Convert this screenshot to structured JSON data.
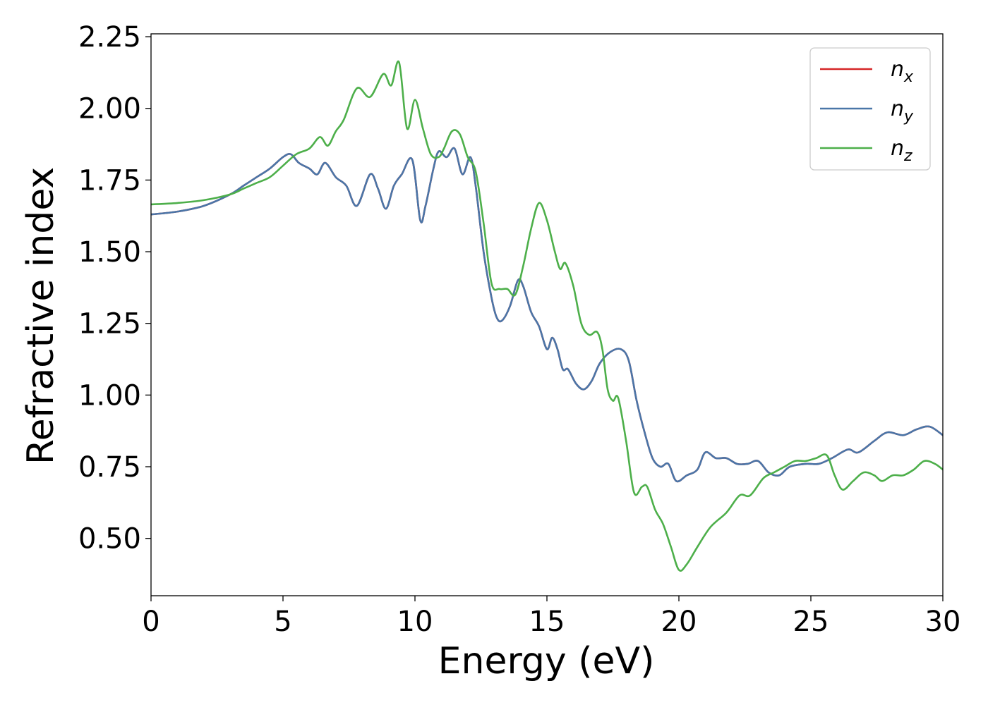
{
  "chart_data": {
    "type": "line",
    "title": "",
    "xlabel": "Energy (eV)",
    "ylabel": "Refractive index",
    "xlim": [
      0,
      30
    ],
    "ylim": [
      0.3,
      2.26
    ],
    "xticks": [
      0,
      5,
      10,
      15,
      20,
      25,
      30
    ],
    "xtick_labels": [
      "0",
      "5",
      "10",
      "15",
      "20",
      "25",
      "30"
    ],
    "yticks": [
      0.5,
      0.75,
      1.0,
      1.25,
      1.5,
      1.75,
      2.0,
      2.25
    ],
    "ytick_labels": [
      "0.50",
      "0.75",
      "1.00",
      "1.25",
      "1.50",
      "1.75",
      "2.00",
      "2.25"
    ],
    "grid": false,
    "legend_position": "top-right",
    "series": [
      {
        "name": "n",
        "subscript": "x",
        "color": "#d62728",
        "x": [
          0,
          1,
          2,
          3,
          3.5,
          4,
          4.5,
          5,
          5.3,
          5.6,
          6,
          6.3,
          6.6,
          7,
          7.4,
          7.8,
          8.3,
          8.6,
          8.9,
          9.2,
          9.5,
          9.9,
          10.2,
          10.4,
          10.7,
          10.9,
          11.2,
          11.5,
          11.8,
          12.1,
          12.3,
          12.6,
          12.9,
          13.1,
          13.3,
          13.6,
          13.9,
          14.1,
          14.4,
          14.7,
          15.0,
          15.2,
          15.4,
          15.6,
          15.8,
          16.1,
          16.4,
          16.7,
          17.0,
          17.4,
          17.8,
          18.1,
          18.4,
          18.7,
          19.0,
          19.3,
          19.6,
          19.9,
          20.3,
          20.7,
          21.0,
          21.4,
          21.8,
          22.2,
          22.6,
          23.0,
          23.4,
          23.8,
          24.2,
          24.8,
          25.3,
          25.8,
          26.4,
          26.8,
          27.4,
          27.9,
          28.5,
          29.0,
          29.5,
          30.0
        ],
        "y": [
          1.63,
          1.64,
          1.66,
          1.7,
          1.73,
          1.76,
          1.79,
          1.83,
          1.84,
          1.81,
          1.79,
          1.77,
          1.81,
          1.76,
          1.73,
          1.66,
          1.77,
          1.72,
          1.65,
          1.73,
          1.77,
          1.82,
          1.61,
          1.66,
          1.79,
          1.85,
          1.83,
          1.86,
          1.77,
          1.83,
          1.73,
          1.5,
          1.34,
          1.27,
          1.26,
          1.31,
          1.4,
          1.38,
          1.29,
          1.24,
          1.16,
          1.2,
          1.16,
          1.09,
          1.09,
          1.04,
          1.02,
          1.05,
          1.11,
          1.15,
          1.16,
          1.12,
          0.98,
          0.87,
          0.78,
          0.75,
          0.76,
          0.7,
          0.72,
          0.74,
          0.8,
          0.78,
          0.78,
          0.76,
          0.76,
          0.77,
          0.73,
          0.72,
          0.75,
          0.76,
          0.76,
          0.78,
          0.81,
          0.8,
          0.84,
          0.87,
          0.86,
          0.88,
          0.89,
          0.86
        ]
      },
      {
        "name": "n",
        "subscript": "y",
        "color": "#4a76a8",
        "x": [
          0,
          1,
          2,
          3,
          3.5,
          4,
          4.5,
          5,
          5.3,
          5.6,
          6,
          6.3,
          6.6,
          7,
          7.4,
          7.8,
          8.3,
          8.6,
          8.9,
          9.2,
          9.5,
          9.9,
          10.2,
          10.4,
          10.7,
          10.9,
          11.2,
          11.5,
          11.8,
          12.1,
          12.3,
          12.6,
          12.9,
          13.1,
          13.3,
          13.6,
          13.9,
          14.1,
          14.4,
          14.7,
          15.0,
          15.2,
          15.4,
          15.6,
          15.8,
          16.1,
          16.4,
          16.7,
          17.0,
          17.4,
          17.8,
          18.1,
          18.4,
          18.7,
          19.0,
          19.3,
          19.6,
          19.9,
          20.3,
          20.7,
          21.0,
          21.4,
          21.8,
          22.2,
          22.6,
          23.0,
          23.4,
          23.8,
          24.2,
          24.8,
          25.3,
          25.8,
          26.4,
          26.8,
          27.4,
          27.9,
          28.5,
          29.0,
          29.5,
          30.0
        ],
        "y": [
          1.63,
          1.64,
          1.66,
          1.7,
          1.73,
          1.76,
          1.79,
          1.83,
          1.84,
          1.81,
          1.79,
          1.77,
          1.81,
          1.76,
          1.73,
          1.66,
          1.77,
          1.72,
          1.65,
          1.73,
          1.77,
          1.82,
          1.61,
          1.66,
          1.79,
          1.85,
          1.83,
          1.86,
          1.77,
          1.83,
          1.73,
          1.5,
          1.34,
          1.27,
          1.26,
          1.31,
          1.4,
          1.38,
          1.29,
          1.24,
          1.16,
          1.2,
          1.16,
          1.09,
          1.09,
          1.04,
          1.02,
          1.05,
          1.11,
          1.15,
          1.16,
          1.12,
          0.98,
          0.87,
          0.78,
          0.75,
          0.76,
          0.7,
          0.72,
          0.74,
          0.8,
          0.78,
          0.78,
          0.76,
          0.76,
          0.77,
          0.73,
          0.72,
          0.75,
          0.76,
          0.76,
          0.78,
          0.81,
          0.8,
          0.84,
          0.87,
          0.86,
          0.88,
          0.89,
          0.86
        ]
      },
      {
        "name": "n",
        "subscript": "z",
        "color": "#4daf4a",
        "x": [
          0,
          1,
          2,
          3,
          3.5,
          4,
          4.5,
          5,
          5.5,
          6,
          6.4,
          6.7,
          7.0,
          7.3,
          7.8,
          8.3,
          8.8,
          9.1,
          9.4,
          9.7,
          10.0,
          10.3,
          10.6,
          10.9,
          11.1,
          11.4,
          11.7,
          12.0,
          12.3,
          12.6,
          12.9,
          13.2,
          13.5,
          13.8,
          14.1,
          14.4,
          14.7,
          15.0,
          15.3,
          15.5,
          15.7,
          16.0,
          16.3,
          16.6,
          16.9,
          17.1,
          17.3,
          17.5,
          17.7,
          18.0,
          18.3,
          18.6,
          18.8,
          19.1,
          19.4,
          19.7,
          20.0,
          20.3,
          20.7,
          21.2,
          21.8,
          22.3,
          22.7,
          23.2,
          23.6,
          24.0,
          24.4,
          24.8,
          25.2,
          25.6,
          25.9,
          26.2,
          26.6,
          27.0,
          27.4,
          27.7,
          28.1,
          28.5,
          28.9,
          29.3,
          29.7,
          30.0
        ],
        "y": [
          1.665,
          1.67,
          1.68,
          1.7,
          1.72,
          1.74,
          1.76,
          1.8,
          1.84,
          1.86,
          1.9,
          1.87,
          1.92,
          1.96,
          2.07,
          2.04,
          2.12,
          2.08,
          2.16,
          1.93,
          2.03,
          1.93,
          1.84,
          1.83,
          1.86,
          1.92,
          1.91,
          1.83,
          1.78,
          1.6,
          1.39,
          1.37,
          1.37,
          1.35,
          1.45,
          1.58,
          1.67,
          1.61,
          1.5,
          1.44,
          1.46,
          1.38,
          1.25,
          1.21,
          1.22,
          1.16,
          1.02,
          0.98,
          0.99,
          0.84,
          0.66,
          0.68,
          0.68,
          0.6,
          0.55,
          0.47,
          0.39,
          0.41,
          0.47,
          0.54,
          0.59,
          0.65,
          0.65,
          0.71,
          0.73,
          0.75,
          0.77,
          0.77,
          0.78,
          0.79,
          0.72,
          0.67,
          0.7,
          0.73,
          0.72,
          0.7,
          0.72,
          0.72,
          0.74,
          0.77,
          0.76,
          0.74
        ]
      }
    ]
  }
}
